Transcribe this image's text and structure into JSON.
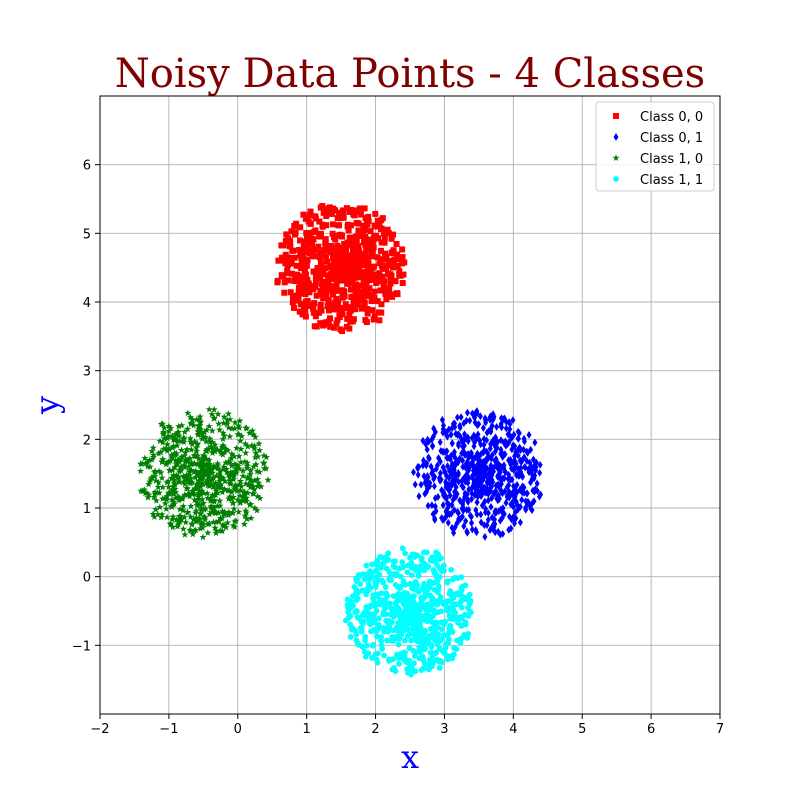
{
  "chart_data": {
    "type": "scatter",
    "title": "Noisy Data Points - 4 Classes",
    "xlabel": "x",
    "ylabel": "y",
    "xlim": [
      -2,
      7
    ],
    "ylim": [
      -2,
      7
    ],
    "xticks": [
      "−2",
      "−1",
      "0",
      "1",
      "2",
      "3",
      "4",
      "5",
      "6",
      "7"
    ],
    "xtick_values": [
      -2,
      -1,
      0,
      1,
      2,
      3,
      4,
      5,
      6,
      7
    ],
    "yticks": [
      "−1",
      "0",
      "1",
      "2",
      "3",
      "4",
      "5",
      "6"
    ],
    "ytick_values": [
      -1,
      0,
      1,
      2,
      3,
      4,
      5,
      6
    ],
    "grid": true,
    "legend_position": "top-right",
    "series": [
      {
        "name": "Class 0, 0",
        "color": "#ff0000",
        "marker": "square",
        "center": [
          1.5,
          4.5
        ],
        "radius": 0.95,
        "count": 700,
        "seed": 11
      },
      {
        "name": "Class 0, 1",
        "color": "#0000ff",
        "marker": "diamond",
        "center": [
          3.5,
          1.5
        ],
        "radius": 0.95,
        "count": 700,
        "seed": 23
      },
      {
        "name": "Class 1, 0",
        "color": "#008000",
        "marker": "star",
        "center": [
          -0.5,
          1.5
        ],
        "radius": 0.95,
        "count": 700,
        "seed": 37
      },
      {
        "name": "Class 1, 1",
        "color": "#00ffff",
        "marker": "circle",
        "center": [
          2.5,
          -0.5
        ],
        "radius": 0.95,
        "count": 700,
        "seed": 53
      }
    ]
  }
}
